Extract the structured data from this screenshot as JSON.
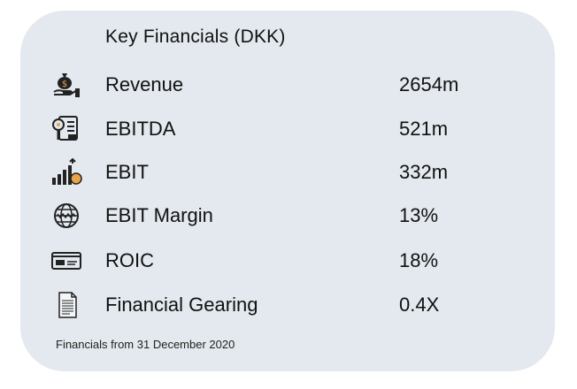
{
  "card": {
    "title": "Key Financials (DKK)",
    "footer": "Financials from 31 December 2020"
  },
  "rows": [
    {
      "label": "Revenue",
      "value": "2654m",
      "icon": "money-bag-hand-icon"
    },
    {
      "label": "EBITDA",
      "value": "521m",
      "icon": "report-magnifier-icon"
    },
    {
      "label": "EBIT",
      "value": "332m",
      "icon": "growth-bars-icon"
    },
    {
      "label": "EBIT Margin",
      "value": "13%",
      "icon": "globe-icon"
    },
    {
      "label": "ROIC",
      "value": "18%",
      "icon": "card-icon"
    },
    {
      "label": "Financial Gearing",
      "value": "0.4X",
      "icon": "document-icon"
    }
  ],
  "colors": {
    "card_bg": "#e3e9ee",
    "text": "#111111",
    "accent": "#e8a44b"
  }
}
